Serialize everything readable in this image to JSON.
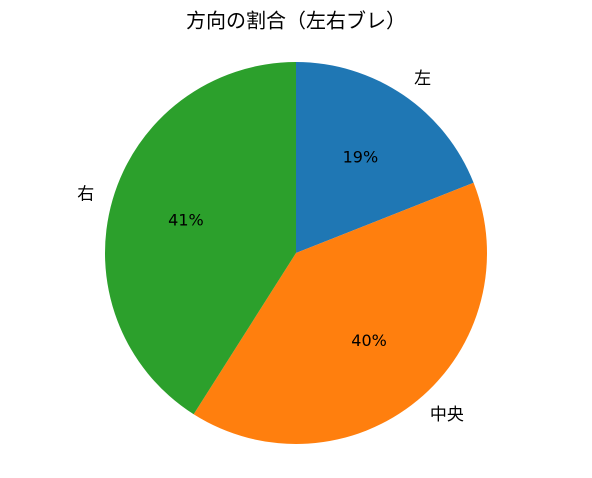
{
  "chart_data": {
    "type": "pie",
    "title": "方向の割合（左右ブレ）",
    "categories": [
      "左",
      "中央",
      "右"
    ],
    "values": [
      19,
      40,
      41
    ],
    "value_labels": [
      "19%",
      "40%",
      "41%"
    ],
    "colors": [
      "#1f77b4",
      "#ff7f0e",
      "#2ca02c"
    ]
  }
}
